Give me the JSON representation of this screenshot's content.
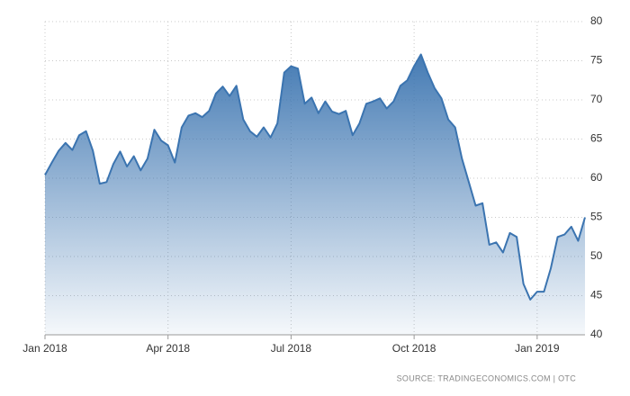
{
  "chart_data": {
    "type": "line",
    "source": "SOURCE: TRADINGECONOMICS.COM | OTC",
    "categories": [
      "Jan 2018",
      null,
      null,
      null,
      null,
      null,
      null,
      null,
      null,
      null,
      null,
      null,
      null,
      null,
      null,
      null,
      null,
      null,
      "Apr 2018",
      null,
      null,
      null,
      null,
      null,
      null,
      null,
      null,
      null,
      null,
      null,
      null,
      null,
      null,
      null,
      null,
      null,
      "Jul 2018",
      null,
      null,
      null,
      null,
      null,
      null,
      null,
      null,
      null,
      null,
      null,
      null,
      null,
      null,
      null,
      null,
      null,
      "Oct 2018",
      null,
      null,
      null,
      null,
      null,
      null,
      null,
      null,
      null,
      null,
      null,
      null,
      null,
      null,
      null,
      null,
      null,
      "Jan 2019",
      null,
      null,
      null,
      null,
      null,
      null,
      null
    ],
    "series": [
      {
        "color": "#3b74b0",
        "values": [
          60.4,
          62,
          63.5,
          64.5,
          63.6,
          65.5,
          66,
          63.5,
          59.3,
          59.5,
          61.8,
          63.4,
          61.5,
          62.8,
          61,
          62.5,
          66.2,
          64.8,
          64.2,
          62,
          66.5,
          68,
          68.3,
          67.8,
          68.6,
          70.8,
          71.7,
          70.5,
          71.8,
          67.5,
          66,
          65.3,
          66.5,
          65.2,
          67,
          73.5,
          74.3,
          74,
          69.5,
          70.3,
          68.3,
          69.8,
          68.5,
          68.2,
          68.6,
          65.5,
          67,
          69.5,
          69.8,
          70.2,
          68.9,
          69.8,
          71.8,
          72.5,
          74.3,
          75.8,
          73.5,
          71.5,
          70.2,
          67.5,
          66.5,
          62.5,
          59.5,
          56.5,
          56.8,
          51.5,
          51.8,
          50.5,
          53,
          52.5,
          46.5,
          44.5,
          45.5,
          45.5,
          48.5,
          52.5,
          52.8,
          53.8,
          52,
          55
        ]
      }
    ],
    "ylim": [
      40,
      80
    ],
    "yticks": [
      40,
      45,
      50,
      55,
      60,
      65,
      70,
      75,
      80
    ],
    "grid": true
  }
}
